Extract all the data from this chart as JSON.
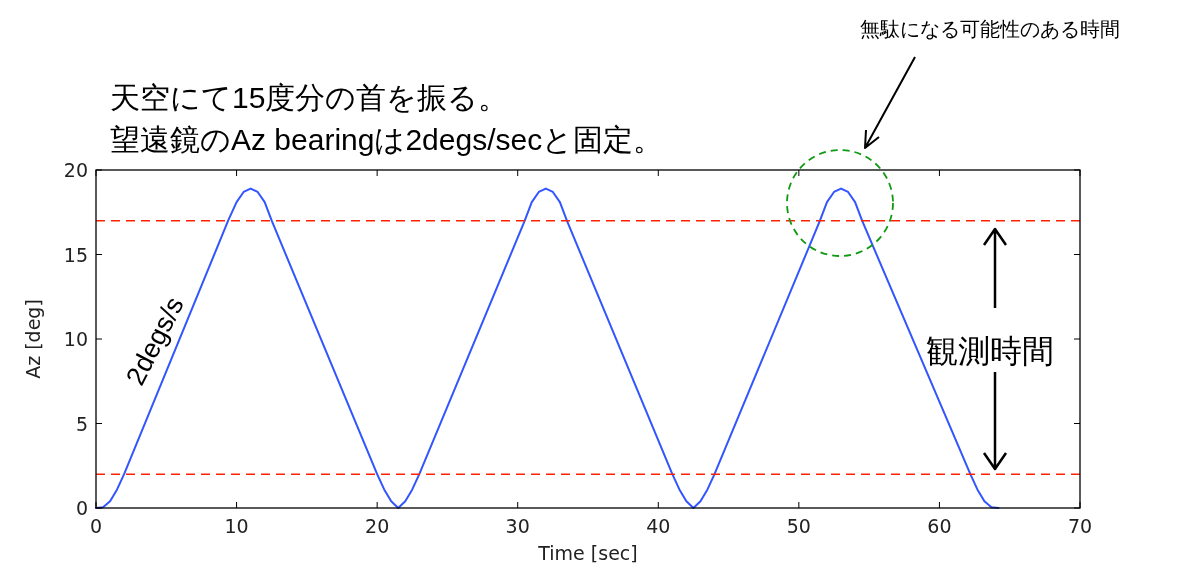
{
  "chart_data": {
    "type": "line",
    "title": "天空にて15度分の首を振る。",
    "subtitle": "望遠鏡のAz bearingは2degs/secと固定。",
    "xlabel": "Time [sec]",
    "ylabel": "Az [deg]",
    "annotations": [
      "無駄になる可能性のある時間",
      "2degs/s",
      "観測時間"
    ],
    "series": [
      {
        "color": "#3355ff",
        "x": [
          0,
          0.5,
          1,
          1.5,
          2,
          9.4,
          10,
          10.5,
          11,
          11.5,
          12,
          12.5,
          20,
          20.5,
          21,
          21.5,
          22,
          22.5,
          23,
          30.5,
          31,
          31.5,
          32,
          32.5,
          33,
          33.5,
          41,
          41.5,
          42,
          42.5,
          43,
          43.5,
          44,
          51.5,
          52,
          52.5,
          53,
          53.5,
          54,
          54.5,
          62.2,
          62.7,
          63.2,
          63.7,
          64.2
        ],
        "values": [
          0,
          0.05,
          0.4,
          1.1,
          2,
          17,
          18.1,
          18.7,
          18.9,
          18.7,
          18.1,
          17,
          2,
          1.1,
          0.4,
          0,
          0.4,
          1.1,
          2,
          17,
          18.1,
          18.7,
          18.9,
          18.7,
          18.1,
          17,
          2,
          1.1,
          0.4,
          0,
          0.4,
          1.1,
          2,
          17,
          18.1,
          18.7,
          18.9,
          18.7,
          18.1,
          17,
          2,
          1.1,
          0.4,
          0.05,
          0
        ]
      }
    ],
    "ref_lines": [
      {
        "axis": "y",
        "value": 17,
        "color": "#ff2200",
        "line_style": "dashed"
      },
      {
        "axis": "y",
        "value": 2,
        "color": "#ff2200",
        "line_style": "dashed"
      }
    ],
    "xlim": [
      0,
      70
    ],
    "ylim": [
      0,
      20
    ],
    "xticks": [
      0,
      10,
      20,
      30,
      40,
      50,
      60,
      70
    ],
    "yticks": [
      0,
      5,
      10,
      15,
      20
    ],
    "grid": false,
    "marker": "none",
    "line_style": "solid"
  }
}
